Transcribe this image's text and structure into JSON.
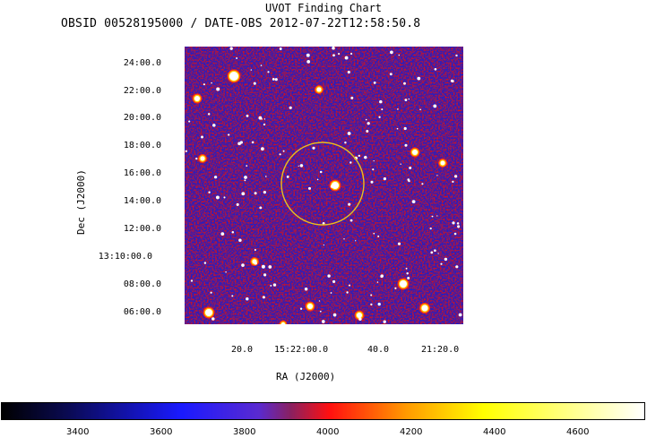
{
  "chart": {
    "title": "UVOT Finding Chart",
    "subtitle": "OBSID 00528195000 / DATE-OBS 2012-07-22T12:58:50.8",
    "ylabel": "Dec (J2000)",
    "xlabel": "RA (J2000)"
  },
  "yticks": [
    "24:00.0",
    "22:00.0",
    "20:00.0",
    "18:00.0",
    "16:00.0",
    "14:00.0",
    "12:00.0",
    "13:10:00.0",
    "08:00.0",
    "06:00.0"
  ],
  "xticks": [
    "20.0",
    "15:22:00.0",
    "40.0",
    "21:20.0"
  ],
  "colorbar": {
    "ticks": [
      "3400",
      "3600",
      "3800",
      "4000",
      "4200",
      "4400",
      "4600"
    ]
  },
  "colors": {
    "map_low": "#0a0a90",
    "map_mid": "#3030ff",
    "map_high": "#ff1010",
    "circle": "#e8c020"
  }
}
